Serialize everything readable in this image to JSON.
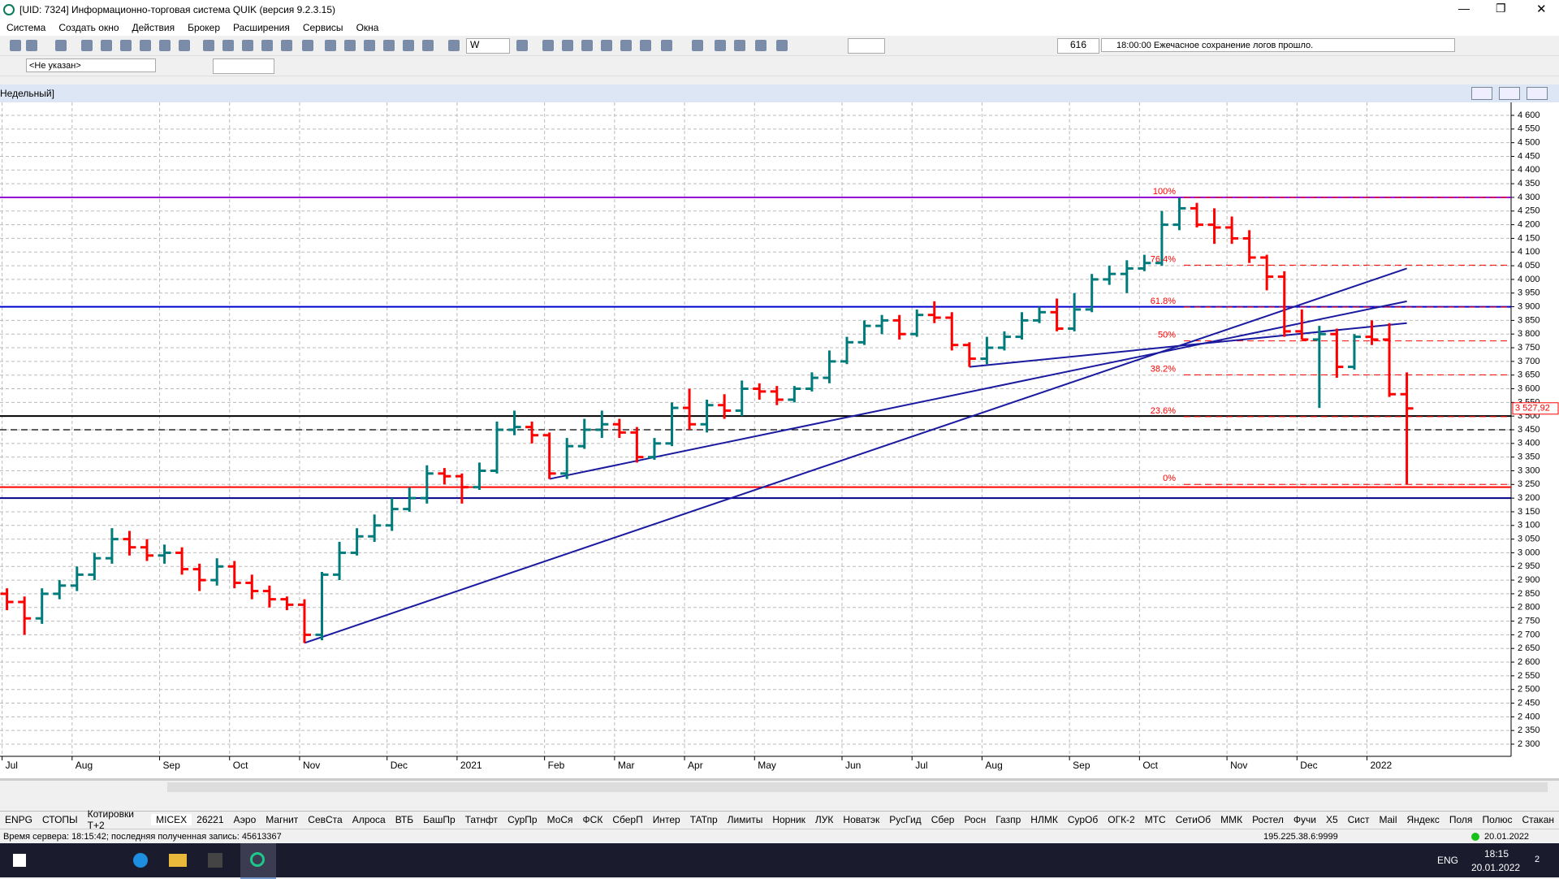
{
  "window": {
    "title": "[UID: 7324] Информационно-торговая система QUIK (версия 9.2.3.15)",
    "menu": [
      "Система",
      "Создать окно",
      "Действия",
      "Брокер",
      "Расширения",
      "Сервисы",
      "Окна"
    ],
    "toolbar": {
      "interval": "W",
      "counter": "616",
      "message": "18:00:00 Ежечасное сохранение логов прошло.",
      "account": "<Не указан>"
    },
    "chart_window_title": "Недельный]",
    "tabs": [
      "ENPG",
      "СТОПЫ",
      "Котировки Т+2",
      "MICEX",
      "26221",
      "Аэро",
      "Магнит",
      "СевСта",
      "Алроса",
      "ВТБ",
      "БашПр",
      "Татнфт",
      "СурПр",
      "МоСя",
      "ФСК",
      "СберП",
      "Интер",
      "ТАТпр",
      "Лимиты",
      "Норник",
      "ЛУК",
      "Новатэк",
      "РусГид",
      "Сбер",
      "Росн",
      "Газпр",
      "НЛМК",
      "СурОб",
      "ОГК-2",
      "МТС",
      "СетиОб",
      "ММК",
      "Ростел",
      "Фучи",
      "X5",
      "Сист",
      "Mail",
      "Яндекс",
      "Поля",
      "Полюс",
      "Стакан"
    ],
    "status": "Время сервера: 18:15:42; последняя полученная запись: 45613367",
    "server": "195.225.38.6:9999",
    "server_date": "20.01.2022",
    "taskbar": {
      "lang": "ENG",
      "time": "18:15",
      "date": "20.01.2022",
      "notifications": "2"
    }
  },
  "chart_data": {
    "type": "ohlc",
    "up_color": "#007b7b",
    "down_color": "#ff0000",
    "categories": [
      "Jul",
      null,
      null,
      null,
      "Aug",
      null,
      null,
      null,
      null,
      "Sep",
      null,
      null,
      null,
      "Oct",
      null,
      null,
      null,
      "Nov",
      null,
      null,
      null,
      null,
      "Dec",
      null,
      null,
      null,
      "2021",
      null,
      null,
      null,
      null,
      "Feb",
      null,
      null,
      null,
      "Mar",
      null,
      null,
      null,
      "Apr",
      null,
      null,
      null,
      "May",
      null,
      null,
      null,
      null,
      "Jun",
      null,
      null,
      null,
      "Jul",
      null,
      null,
      null,
      "Aug",
      null,
      null,
      null,
      null,
      "Sep",
      null,
      null,
      null,
      "Oct",
      null,
      null,
      null,
      null,
      "Nov",
      null,
      null,
      null,
      "Dec",
      null,
      null,
      null,
      "2022",
      null,
      null
    ],
    "open": [
      2850,
      2820,
      2760,
      2850,
      2880,
      2920,
      2980,
      3050,
      3020,
      2990,
      3000,
      2940,
      2900,
      2950,
      2890,
      2860,
      2830,
      2810,
      2700,
      2920,
      3000,
      3060,
      3100,
      3160,
      3200,
      3290,
      3280,
      3240,
      3300,
      3450,
      3460,
      3430,
      3290,
      3390,
      3450,
      3470,
      3440,
      3350,
      3400,
      3530,
      3470,
      3540,
      3520,
      3600,
      3590,
      3560,
      3600,
      3640,
      3700,
      3770,
      3830,
      3850,
      3800,
      3870,
      3860,
      3760,
      3710,
      3750,
      3790,
      3850,
      3880,
      3820,
      3890,
      4000,
      4020,
      4040,
      4060,
      4200,
      4260,
      4200,
      4190,
      4150,
      4080,
      4010,
      3810,
      3780,
      3800,
      3680,
      3790,
      3780,
      3580
    ],
    "high": [
      2870,
      2840,
      2870,
      2900,
      2950,
      3000,
      3090,
      3080,
      3050,
      3030,
      3020,
      2960,
      2980,
      2970,
      2920,
      2880,
      2840,
      2830,
      2930,
      3040,
      3090,
      3140,
      3200,
      3240,
      3320,
      3310,
      3290,
      3330,
      3480,
      3520,
      3480,
      3440,
      3420,
      3490,
      3520,
      3490,
      3460,
      3420,
      3550,
      3600,
      3560,
      3580,
      3630,
      3620,
      3610,
      3610,
      3660,
      3740,
      3790,
      3850,
      3870,
      3870,
      3890,
      3920,
      3880,
      3770,
      3790,
      3810,
      3880,
      3900,
      3930,
      3950,
      4020,
      4050,
      4070,
      4090,
      4250,
      4300,
      4280,
      4260,
      4230,
      4180,
      4090,
      4030,
      3890,
      3830,
      3820,
      3800,
      3850,
      3840,
      3660
    ],
    "low": [
      2790,
      2700,
      2740,
      2830,
      2860,
      2900,
      2960,
      2990,
      2970,
      2960,
      2920,
      2860,
      2880,
      2870,
      2830,
      2800,
      2790,
      2670,
      2680,
      2900,
      2990,
      3040,
      3080,
      3150,
      3180,
      3250,
      3180,
      3230,
      3290,
      3430,
      3400,
      3270,
      3270,
      3380,
      3420,
      3420,
      3330,
      3340,
      3390,
      3450,
      3440,
      3490,
      3500,
      3560,
      3540,
      3550,
      3590,
      3620,
      3690,
      3760,
      3800,
      3780,
      3790,
      3840,
      3740,
      3680,
      3690,
      3740,
      3780,
      3840,
      3810,
      3810,
      3880,
      3980,
      3950,
      4030,
      4050,
      4180,
      4190,
      4130,
      4130,
      4060,
      3960,
      3790,
      3780,
      3530,
      3640,
      3670,
      3760,
      3570,
      3250
    ],
    "close": [
      2820,
      2760,
      2850,
      2880,
      2920,
      2980,
      3050,
      3020,
      2990,
      3000,
      2940,
      2900,
      2950,
      2890,
      2860,
      2830,
      2810,
      2700,
      2920,
      3000,
      3060,
      3100,
      3160,
      3200,
      3290,
      3280,
      3240,
      3300,
      3450,
      3460,
      3430,
      3290,
      3390,
      3450,
      3470,
      3440,
      3350,
      3400,
      3530,
      3470,
      3540,
      3520,
      3600,
      3590,
      3560,
      3600,
      3640,
      3700,
      3770,
      3830,
      3850,
      3800,
      3870,
      3860,
      3760,
      3710,
      3750,
      3790,
      3850,
      3880,
      3820,
      3890,
      4000,
      4020,
      4040,
      4060,
      4200,
      4260,
      4200,
      4190,
      4150,
      4080,
      4010,
      3810,
      3780,
      3800,
      3680,
      3790,
      3780,
      3580,
      3528
    ],
    "ylim": [
      2300,
      4600
    ],
    "yticks": [
      {
        "value": 2300,
        "label": "2 300"
      },
      {
        "value": 2350,
        "label": "2 350"
      },
      {
        "value": 2400,
        "label": "2 400"
      },
      {
        "value": 2450,
        "label": "2 450"
      },
      {
        "value": 2500,
        "label": "2 500"
      },
      {
        "value": 2550,
        "label": "2 550"
      },
      {
        "value": 2600,
        "label": "2 600"
      },
      {
        "value": 2650,
        "label": "2 650"
      },
      {
        "value": 2700,
        "label": "2 700"
      },
      {
        "value": 2750,
        "label": "2 750"
      },
      {
        "value": 2800,
        "label": "2 800"
      },
      {
        "value": 2850,
        "label": "2 850"
      },
      {
        "value": 2900,
        "label": "2 900"
      },
      {
        "value": 2950,
        "label": "2 950"
      },
      {
        "value": 3000,
        "label": "3 000"
      },
      {
        "value": 3050,
        "label": "3 050"
      },
      {
        "value": 3100,
        "label": "3 100"
      },
      {
        "value": 3150,
        "label": "3 150"
      },
      {
        "value": 3200,
        "label": "3 200"
      },
      {
        "value": 3250,
        "label": "3 250"
      },
      {
        "value": 3300,
        "label": "3 300"
      },
      {
        "value": 3350,
        "label": "3 350"
      },
      {
        "value": 3400,
        "label": "3 400"
      },
      {
        "value": 3450,
        "label": "3 450"
      },
      {
        "value": 3500,
        "label": "3 500"
      },
      {
        "value": 3550,
        "label": "3 550"
      },
      {
        "value": 3600,
        "label": "3 600"
      },
      {
        "value": 3650,
        "label": "3 650"
      },
      {
        "value": 3700,
        "label": "3 700"
      },
      {
        "value": 3750,
        "label": "3 750"
      },
      {
        "value": 3800,
        "label": "3 800"
      },
      {
        "value": 3850,
        "label": "3 850"
      },
      {
        "value": 3900,
        "label": "3 900"
      },
      {
        "value": 3950,
        "label": "3 950"
      },
      {
        "value": 4000,
        "label": "4 000"
      },
      {
        "value": 4050,
        "label": "4 050"
      },
      {
        "value": 4100,
        "label": "4 100"
      },
      {
        "value": 4150,
        "label": "4 150"
      },
      {
        "value": 4200,
        "label": "4 200"
      },
      {
        "value": 4250,
        "label": "4 250"
      },
      {
        "value": 4300,
        "label": "4 300"
      },
      {
        "value": 4350,
        "label": "4 350"
      },
      {
        "value": 4400,
        "label": "4 400"
      },
      {
        "value": 4450,
        "label": "4 450"
      },
      {
        "value": 4500,
        "label": "4 500"
      },
      {
        "value": 4550,
        "label": "4 550"
      },
      {
        "value": 4600,
        "label": "4 600"
      }
    ],
    "grid": true,
    "last_price": {
      "value": 3527.92,
      "label": "3 527,92"
    },
    "levels": [
      {
        "value": 4300,
        "color": "#9400d3"
      },
      {
        "value": 3900,
        "color": "#0000cd"
      },
      {
        "value": 3500,
        "color": "#000000"
      },
      {
        "value": 3450,
        "color": "#000000",
        "dashed": true
      },
      {
        "value": 3240,
        "color": "#ff0000"
      },
      {
        "value": 3200,
        "color": "#00008b"
      }
    ],
    "fibonacci": [
      {
        "value": 4300,
        "label": "100%"
      },
      {
        "value": 4052,
        "label": "76.4%"
      },
      {
        "value": 3899,
        "label": "61.8%"
      },
      {
        "value": 3775,
        "label": "50%"
      },
      {
        "value": 3651,
        "label": "38.2%"
      },
      {
        "value": 3498,
        "label": "23.6%"
      },
      {
        "value": 3250,
        "label": "0%"
      }
    ],
    "trendlines": [
      [
        17,
        2670,
        80,
        4040
      ],
      [
        31,
        3270,
        80,
        3920
      ],
      [
        55,
        3680,
        80,
        3840
      ]
    ]
  }
}
